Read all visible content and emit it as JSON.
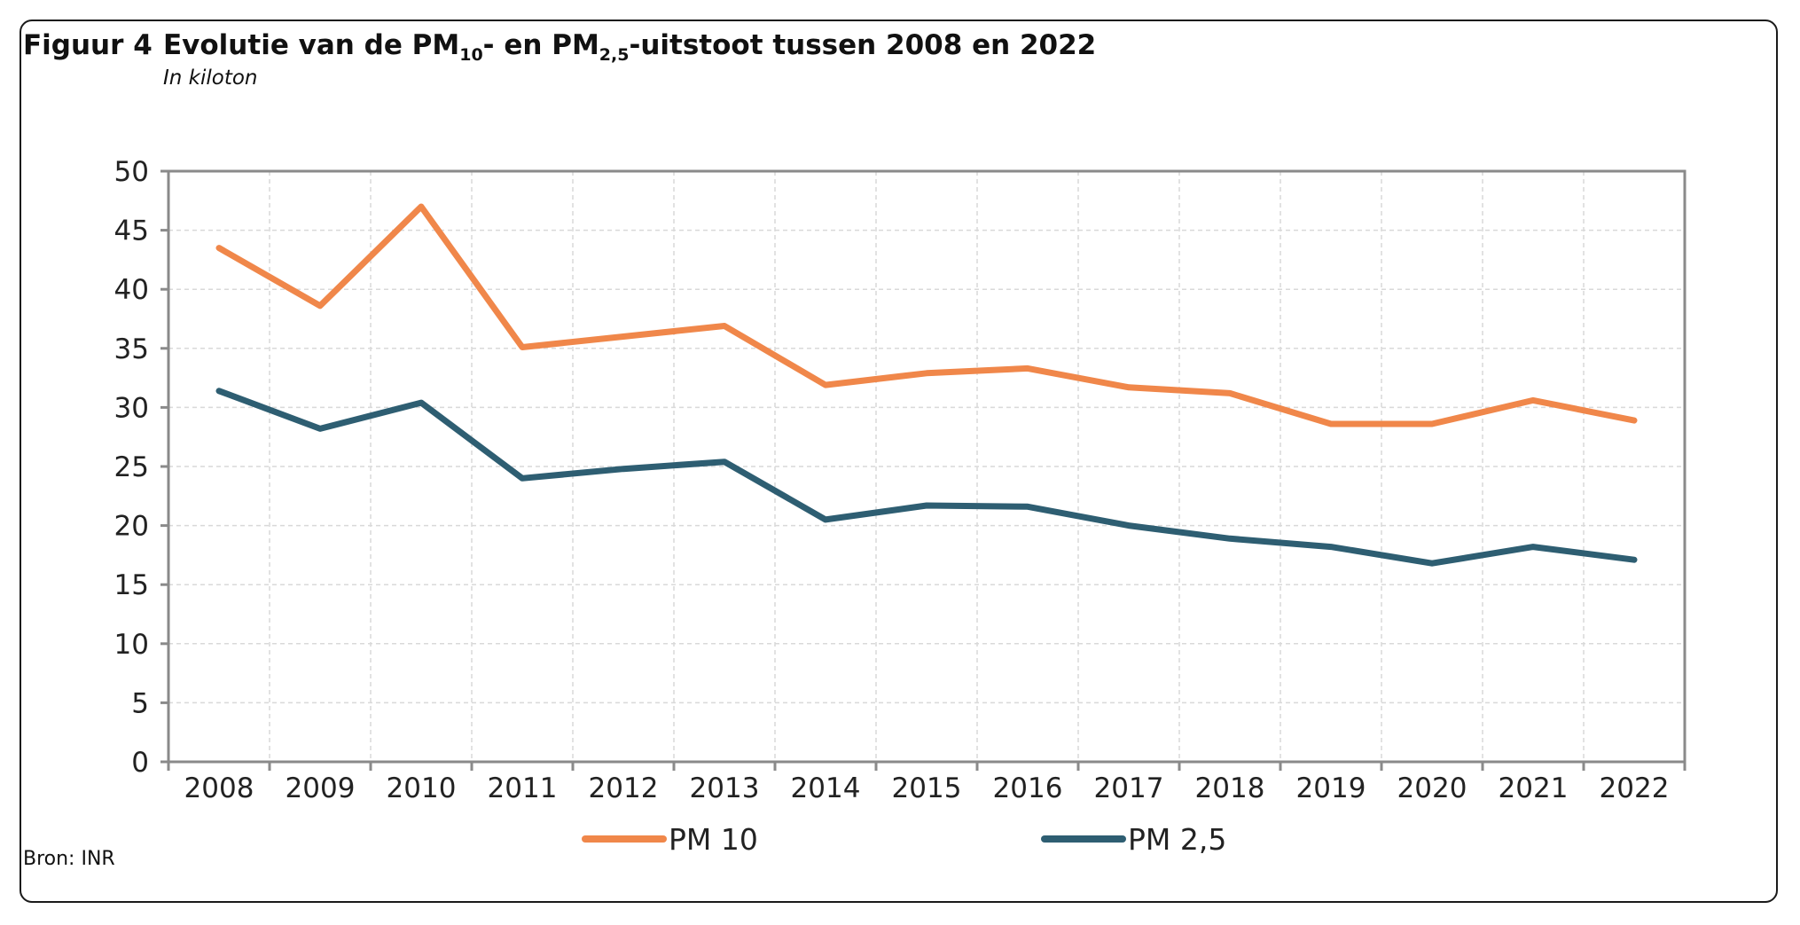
{
  "figure": {
    "label": "Figuur 4",
    "title_parts": [
      "Evolutie van de PM",
      "10",
      "- en PM",
      "2,5",
      "-uitstoot tussen 2008 en 2022"
    ],
    "subtitle": "In kiloton",
    "source": "Bron: INR"
  },
  "colors": {
    "pm10": "#F0874A",
    "pm25": "#2E5E72",
    "axis": "#8a8a8a",
    "grid": "#d9d9d9"
  },
  "chart_data": {
    "type": "line",
    "title": "Evolutie van de PM10- en PM2,5-uitstoot tussen 2008 en 2022",
    "subtitle": "In kiloton",
    "categories": [
      "2008",
      "2009",
      "2010",
      "2011",
      "2012",
      "2013",
      "2014",
      "2015",
      "2016",
      "2017",
      "2018",
      "2019",
      "2020",
      "2021",
      "2022"
    ],
    "ylim": [
      0,
      50
    ],
    "yticks": [
      0,
      5,
      10,
      15,
      20,
      25,
      30,
      35,
      40,
      45,
      50
    ],
    "grid": true,
    "legend_position": "bottom",
    "series": [
      {
        "name": "PM 10",
        "color": "#F0874A",
        "values": [
          43.5,
          38.6,
          47.0,
          35.1,
          36.0,
          36.9,
          31.9,
          32.9,
          33.3,
          31.7,
          31.2,
          28.6,
          28.6,
          30.6,
          28.9
        ]
      },
      {
        "name": "PM 2,5",
        "color": "#2E5E72",
        "values": [
          31.4,
          28.2,
          30.4,
          24.0,
          24.8,
          25.4,
          20.5,
          21.7,
          21.6,
          20.0,
          18.9,
          18.2,
          16.8,
          18.2,
          17.1
        ]
      }
    ]
  }
}
